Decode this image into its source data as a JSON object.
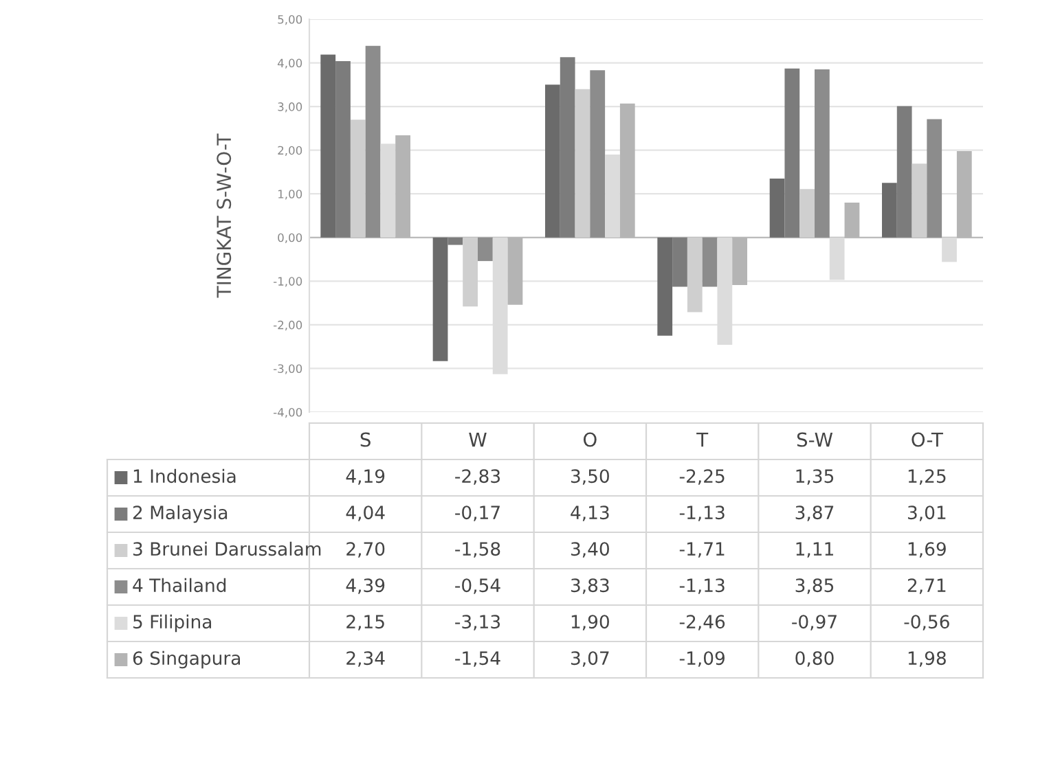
{
  "chart_data": {
    "type": "bar",
    "ylabel": "TINGKAT S-W-O-T",
    "categories": [
      "S",
      "W",
      "O",
      "T",
      "S-W",
      "O-T"
    ],
    "series": [
      {
        "name": "1 Indonesia",
        "color": "#6b6b6b",
        "values": [
          4.19,
          -2.83,
          3.5,
          -2.25,
          1.35,
          1.25
        ],
        "value_labels": [
          "4,19",
          "-2,83",
          "3,50",
          "-2,25",
          "1,35",
          "1,25"
        ]
      },
      {
        "name": "2 Malaysia",
        "color": "#7c7c7c",
        "values": [
          4.04,
          -0.17,
          4.13,
          -1.13,
          3.87,
          3.01
        ],
        "value_labels": [
          "4,04",
          "-0,17",
          "4,13",
          "-1,13",
          "3,87",
          "3,01"
        ]
      },
      {
        "name": "3 Brunei Darussalam",
        "color": "#cfcfcf",
        "values": [
          2.7,
          -1.58,
          3.4,
          -1.71,
          1.11,
          1.69
        ],
        "value_labels": [
          "2,70",
          "-1,58",
          "3,40",
          "-1,71",
          "1,11",
          "1,69"
        ]
      },
      {
        "name": "4 Thailand",
        "color": "#8c8c8c",
        "values": [
          4.39,
          -0.54,
          3.83,
          -1.13,
          3.85,
          2.71
        ],
        "value_labels": [
          "4,39",
          "-0,54",
          "3,83",
          "-1,13",
          "3,85",
          "2,71"
        ]
      },
      {
        "name": "5 Filipina",
        "color": "#dcdcdc",
        "values": [
          2.15,
          -3.13,
          1.9,
          -2.46,
          -0.97,
          -0.56
        ],
        "value_labels": [
          "2,15",
          "-3,13",
          "1,90",
          "-2,46",
          "-0,97",
          "-0,56"
        ]
      },
      {
        "name": "6 Singapura",
        "color": "#b4b4b4",
        "values": [
          2.34,
          -1.54,
          3.07,
          -1.09,
          0.8,
          1.98
        ],
        "value_labels": [
          "2,34",
          "-1,54",
          "3,07",
          "-1,09",
          "0,80",
          "1,98"
        ]
      }
    ],
    "ylim": [
      -4,
      5
    ],
    "yticks": [
      {
        "value": -4,
        "label": "-4,00"
      },
      {
        "value": -3,
        "label": "-3,00"
      },
      {
        "value": -2,
        "label": "-2,00"
      },
      {
        "value": -1,
        "label": "-1,00"
      },
      {
        "value": 0,
        "label": "0,00"
      },
      {
        "value": 1,
        "label": "1,00"
      },
      {
        "value": 2,
        "label": "2,00"
      },
      {
        "value": 3,
        "label": "3,00"
      },
      {
        "value": 4,
        "label": "4,00"
      },
      {
        "value": 5,
        "label": "5,00"
      }
    ],
    "grid": "y",
    "legend": "bottom"
  }
}
